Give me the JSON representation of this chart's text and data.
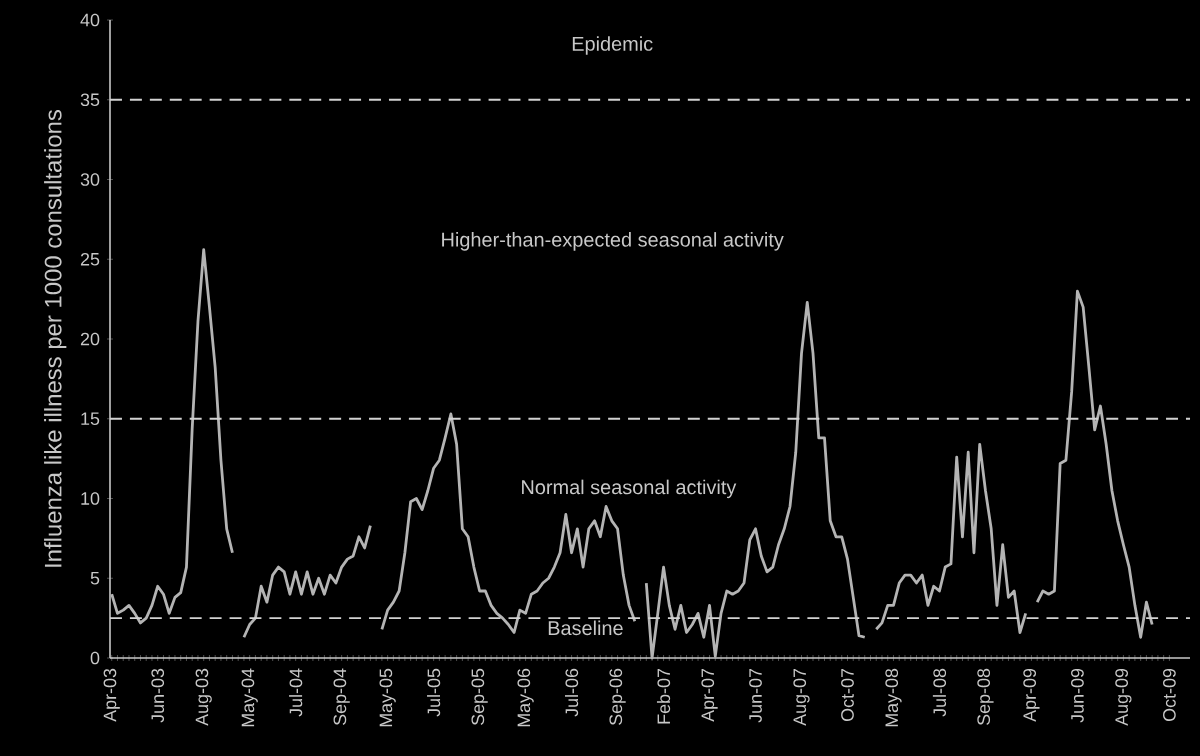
{
  "chart_data": {
    "type": "line",
    "ylabel": "Influenza like illness per 1000 consultations",
    "categories": [
      "Apr-03",
      null,
      null,
      null,
      null,
      null,
      null,
      null,
      "Jun-03",
      null,
      null,
      null,
      null,
      null,
      null,
      null,
      "Aug-03",
      null,
      null,
      null,
      null,
      null,
      null,
      null,
      "May-04",
      null,
      null,
      null,
      null,
      null,
      null,
      null,
      "Jul-04",
      null,
      null,
      null,
      null,
      null,
      null,
      null,
      "Sep-04",
      null,
      null,
      null,
      null,
      null,
      null,
      null,
      "May-05",
      null,
      null,
      null,
      null,
      null,
      null,
      null,
      "Jul-05",
      null,
      null,
      null,
      null,
      null,
      null,
      null,
      "Sep-05",
      null,
      null,
      null,
      null,
      null,
      null,
      null,
      "May-06",
      null,
      null,
      null,
      null,
      null,
      null,
      null,
      "Jul-06",
      null,
      null,
      null,
      null,
      null,
      null,
      null,
      "Sep-06",
      null,
      null,
      null,
      null,
      null,
      null,
      null,
      "Feb-07",
      null,
      null,
      null,
      null,
      null,
      null,
      null,
      "Apr-07",
      null,
      null,
      null,
      null,
      null,
      null,
      null,
      "Jun-07",
      null,
      null,
      null,
      null,
      null,
      null,
      null,
      "Aug-07",
      null,
      null,
      null,
      null,
      null,
      null,
      null,
      "Oct-07",
      null,
      null,
      null,
      null,
      null,
      null,
      null,
      "May-08",
      null,
      null,
      null,
      null,
      null,
      null,
      null,
      "Jul-08",
      null,
      null,
      null,
      null,
      null,
      null,
      null,
      "Sep-08",
      null,
      null,
      null,
      null,
      null,
      null,
      null,
      "Apr-09",
      null,
      null,
      null,
      null,
      null,
      null,
      null,
      "Jun-09",
      null,
      null,
      null,
      null,
      null,
      null,
      null,
      "Aug-09",
      null,
      null,
      null,
      null,
      null,
      null,
      null,
      "Oct-09"
    ],
    "ylim": [
      0,
      40
    ],
    "yticks": [
      0,
      5,
      10,
      15,
      20,
      25,
      30,
      35,
      40
    ],
    "series": [
      {
        "color": "#b4b4b4",
        "values": [
          4.0,
          2.8,
          3.0,
          3.3,
          2.8,
          2.2,
          2.5,
          3.3,
          4.5,
          4.0,
          2.8,
          3.8,
          4.1,
          5.7,
          14.4,
          21.1,
          25.6,
          22.0,
          18.2,
          12.4,
          8.1,
          6.6,
          null,
          1.3,
          2.1,
          2.5,
          4.5,
          3.5,
          5.2,
          5.7,
          5.4,
          4.0,
          5.4,
          4.0,
          5.4,
          4.0,
          5.0,
          4.0,
          5.2,
          4.7,
          5.7,
          6.2,
          6.4,
          7.6,
          6.9,
          8.3,
          null,
          1.8,
          3.0,
          3.5,
          4.2,
          6.6,
          9.8,
          10.0,
          9.3,
          10.5,
          11.9,
          12.4,
          13.8,
          15.3,
          13.4,
          8.1,
          7.6,
          5.7,
          4.2,
          4.2,
          3.3,
          2.8,
          2.5,
          2.1,
          1.6,
          3.0,
          2.8,
          4.0,
          4.2,
          4.7,
          5.0,
          5.7,
          6.6,
          9.0,
          6.6,
          8.1,
          5.7,
          8.1,
          8.6,
          7.6,
          9.5,
          8.6,
          8.1,
          5.2,
          3.3,
          2.3,
          null,
          4.7,
          0,
          2.8,
          5.7,
          3.3,
          1.8,
          3.3,
          1.6,
          2.1,
          2.8,
          1.3,
          3.3,
          0.1,
          2.8,
          4.2,
          4.0,
          4.2,
          4.7,
          7.4,
          8.1,
          6.4,
          5.4,
          5.7,
          7.1,
          8.1,
          9.5,
          12.9,
          19.1,
          22.3,
          19.1,
          13.8,
          13.8,
          8.6,
          7.6,
          7.6,
          6.2,
          3.8,
          1.4,
          1.3,
          null,
          1.8,
          2.2,
          3.3,
          3.3,
          4.7,
          5.2,
          5.2,
          4.7,
          5.2,
          3.3,
          4.5,
          4.2,
          5.7,
          5.9,
          12.6,
          7.6,
          12.9,
          6.6,
          13.4,
          10.5,
          8.1,
          3.3,
          7.1,
          3.8,
          4.2,
          1.6,
          2.8,
          null,
          3.5,
          4.2,
          4.0,
          4.2,
          12.2,
          12.4,
          16.7,
          23.0,
          22.0,
          18.2,
          14.3,
          15.8,
          13.4,
          10.5,
          8.6,
          7.1,
          5.7,
          3.3,
          1.3,
          3.5,
          2.1,
          null,
          null,
          null
        ]
      }
    ],
    "ref_lines": [
      {
        "axis": "y",
        "value": 2.5,
        "label": "Baseline",
        "color": "#d2d2d2",
        "line_style": "dashed"
      },
      {
        "axis": "y",
        "value": 15,
        "color": "#d2d2d2",
        "line_style": "dashed"
      },
      {
        "axis": "y",
        "value": 35,
        "color": "#d2d2d2",
        "line_style": "dashed"
      }
    ],
    "annotations": [
      "Epidemic",
      "Higher-than-expected seasonal activity",
      "Normal seasonal activity"
    ],
    "grid": false,
    "line_style": "solid",
    "marker": "none"
  }
}
